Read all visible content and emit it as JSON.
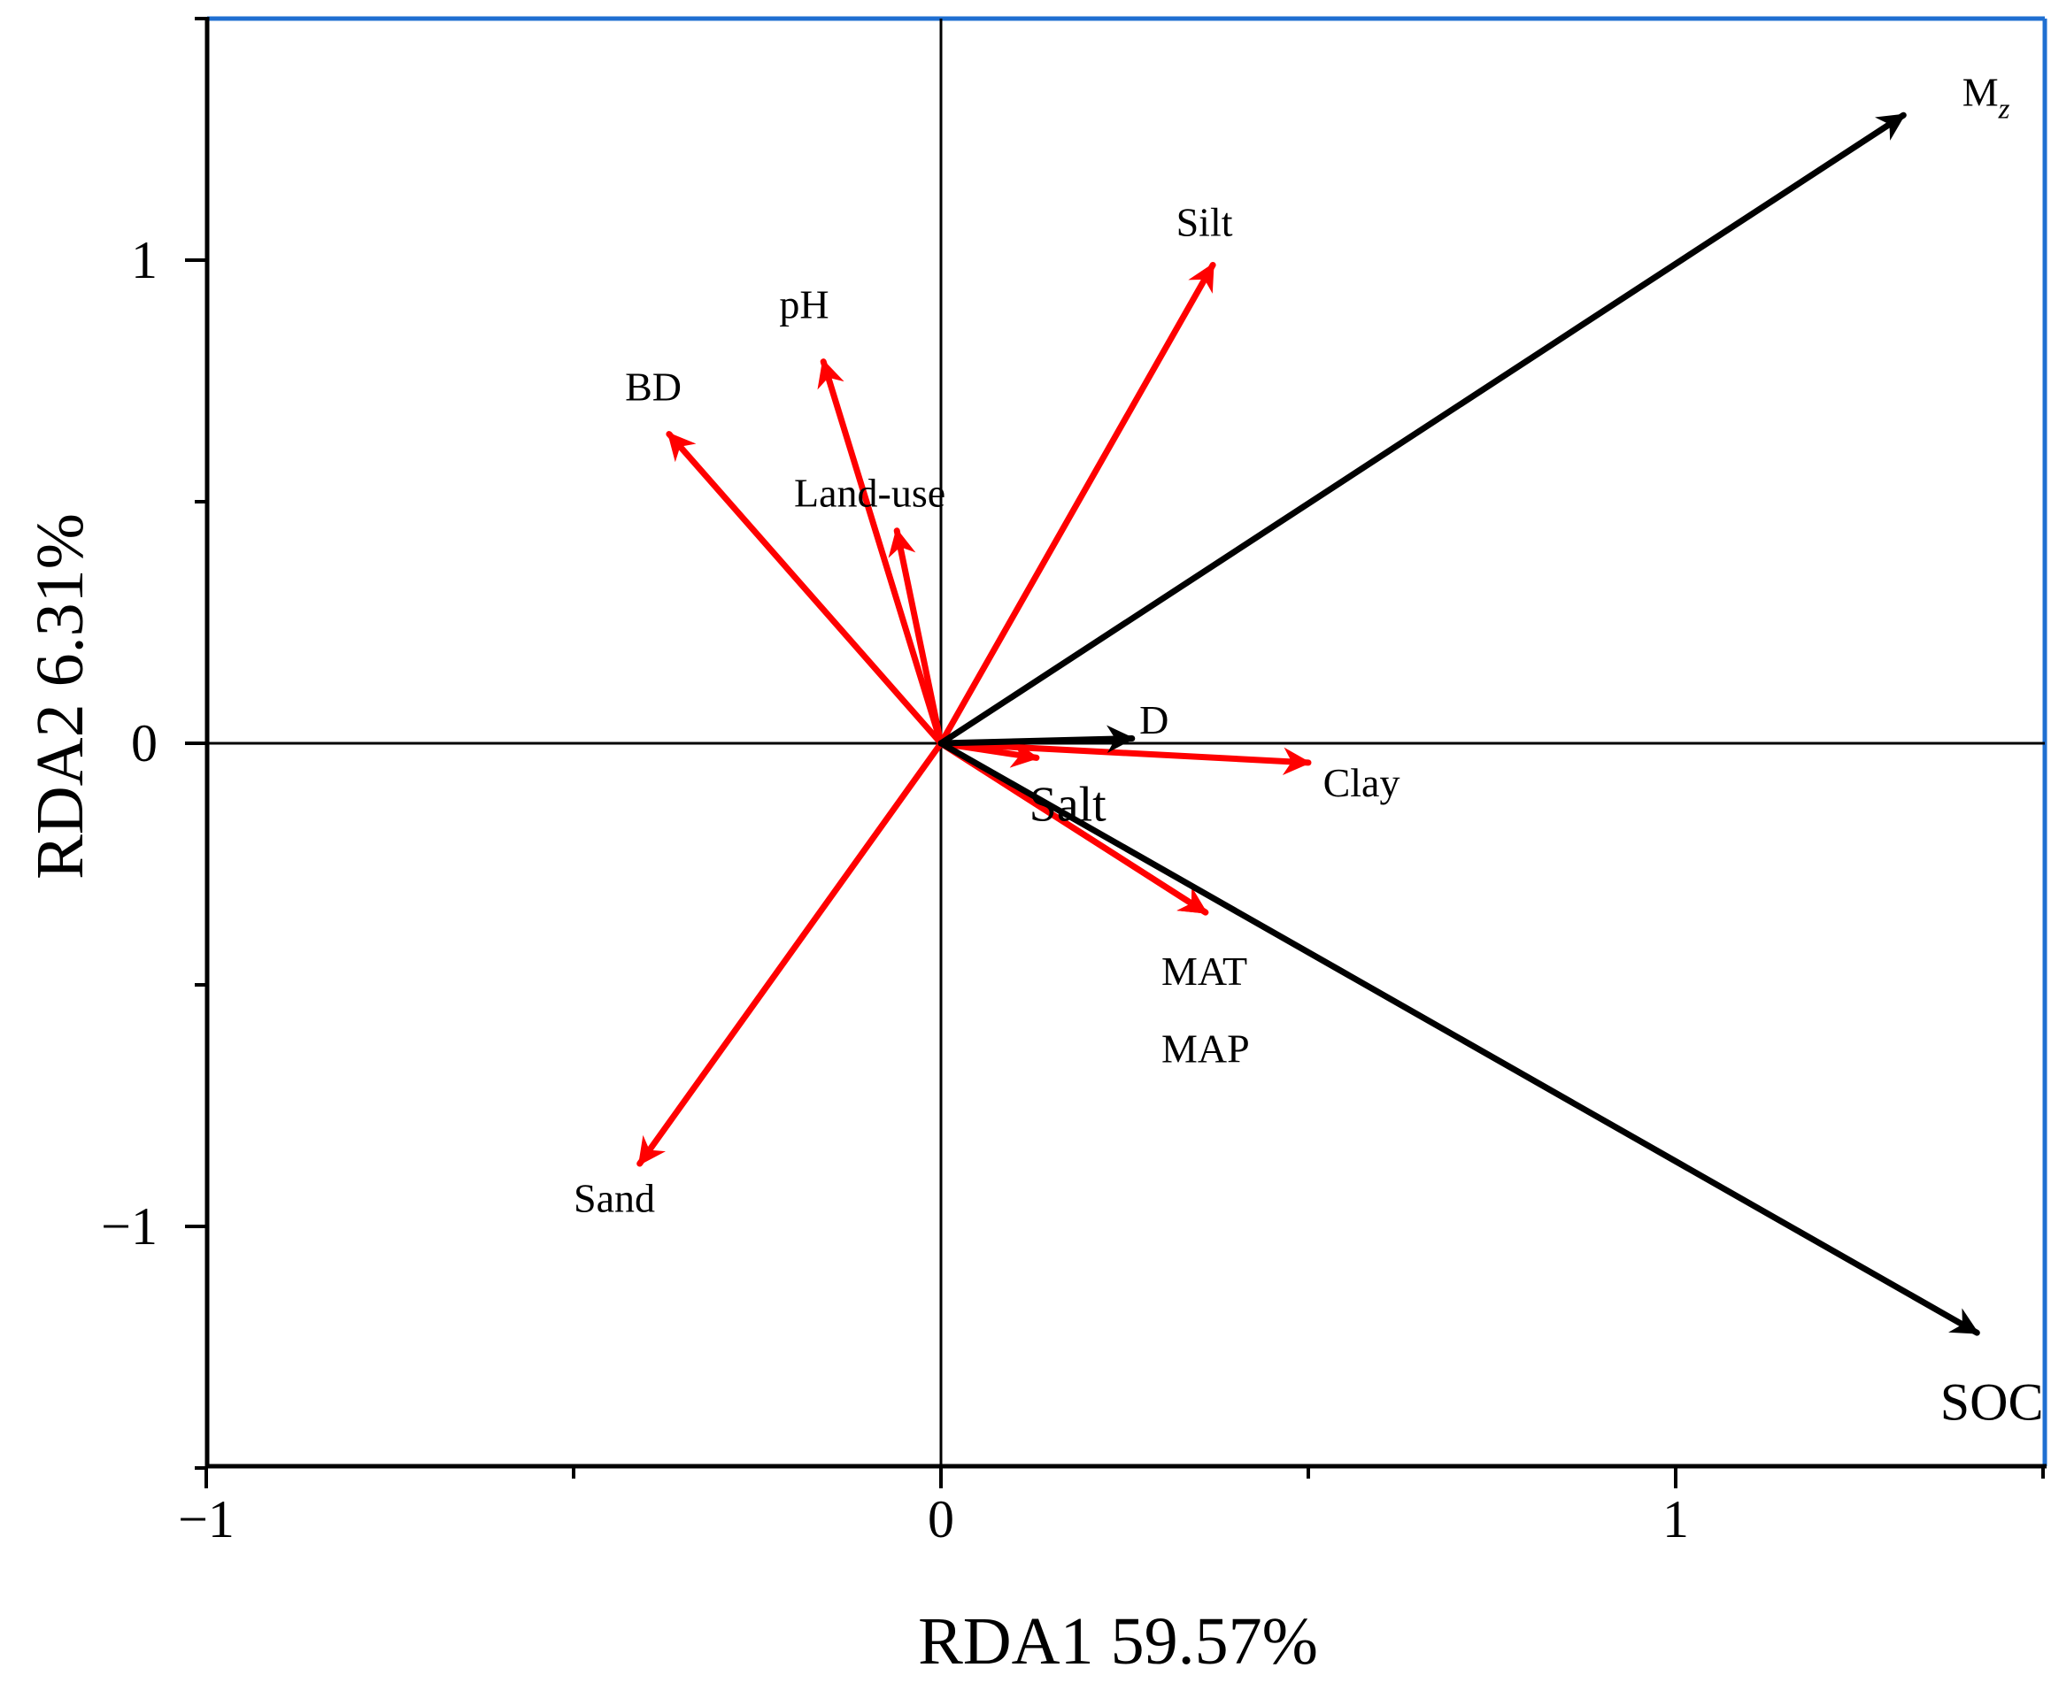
{
  "chart_data": {
    "type": "biplot",
    "xlabel": "RDA1 59.57%",
    "ylabel": "RDA2 6.31%",
    "xlim": [
      -1,
      1.5
    ],
    "ylim": [
      -1.5,
      1.5
    ],
    "x_ticks": [
      {
        "value": -1,
        "label": "−1"
      },
      {
        "value": 0,
        "label": "0"
      },
      {
        "value": 1,
        "label": "1"
      }
    ],
    "x_minor_ticks": [
      -0.5,
      0.5,
      1.5
    ],
    "y_ticks": [
      {
        "value": 1,
        "label": "1"
      },
      {
        "value": 0,
        "label": "0"
      },
      {
        "value": -1,
        "label": "−1"
      }
    ],
    "y_minor_ticks": [
      1.5,
      0.5,
      -0.5,
      -1.5
    ],
    "reference_lines": {
      "x": 0,
      "y": 0
    },
    "response_color": "#000000",
    "explanatory_color": "#ff0000",
    "vectors": [
      {
        "label": "M",
        "subscript": "z",
        "x": 1.31,
        "y": 1.3,
        "group": "response",
        "label_pos": [
          1.39,
          1.32
        ],
        "label_size": 46
      },
      {
        "label": "SOC",
        "x": 1.41,
        "y": -1.22,
        "group": "response",
        "label_pos": [
          1.36,
          -1.4
        ],
        "label_size": 60
      },
      {
        "label": "D",
        "x": 0.26,
        "y": 0.01,
        "group": "response",
        "label_pos": [
          0.27,
          0.02
        ],
        "label_size": 46
      },
      {
        "label": "Silt",
        "x": 0.37,
        "y": 0.99,
        "group": "explanatory",
        "label_pos": [
          0.32,
          1.05
        ],
        "label_size": 46
      },
      {
        "label": "pH",
        "x": -0.16,
        "y": 0.79,
        "group": "explanatory",
        "label_pos": [
          -0.22,
          0.88
        ],
        "label_size": 46
      },
      {
        "label": "BD",
        "x": -0.37,
        "y": 0.64,
        "group": "explanatory",
        "label_pos": [
          -0.43,
          0.71
        ],
        "label_size": 46
      },
      {
        "label": "Land-use",
        "x": -0.06,
        "y": 0.44,
        "group": "explanatory",
        "label_pos": [
          -0.2,
          0.49
        ],
        "label_size": 46
      },
      {
        "label": "Clay",
        "x": 0.5,
        "y": -0.04,
        "group": "explanatory",
        "label_pos": [
          0.52,
          -0.11
        ],
        "label_size": 46
      },
      {
        "label": "Salt",
        "x": 0.13,
        "y": -0.03,
        "group": "explanatory",
        "label_pos": [
          0.12,
          -0.16
        ],
        "label_size": 56
      },
      {
        "label": "MAT",
        "x": 0.36,
        "y": -0.35,
        "group": "explanatory",
        "label_pos": [
          0.3,
          -0.5
        ],
        "label_size": 46
      },
      {
        "label": "MAP",
        "x": 0.36,
        "y": -0.35,
        "group": "explanatory",
        "label_pos": [
          0.3,
          -0.66
        ],
        "label_size": 46
      },
      {
        "label": "Sand",
        "x": -0.41,
        "y": -0.87,
        "group": "explanatory",
        "label_pos": [
          -0.5,
          -0.97
        ],
        "label_size": 46
      }
    ]
  }
}
